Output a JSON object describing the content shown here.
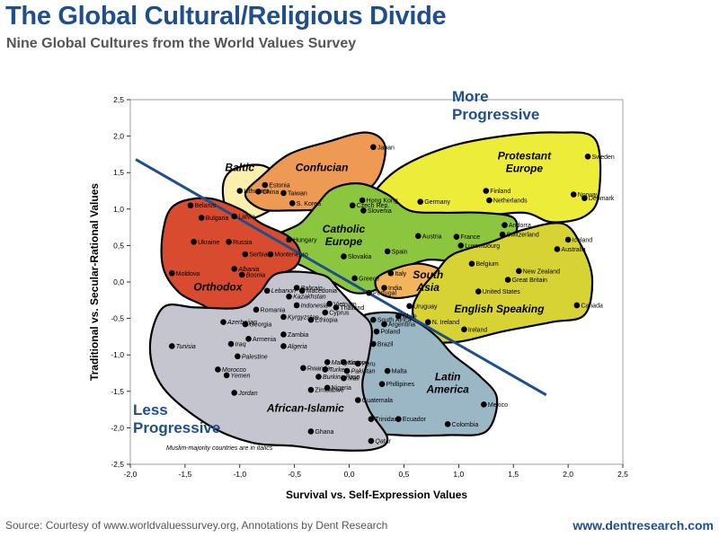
{
  "title": "The Global Cultural/Religious Divide",
  "subtitle": "Nine Global Cultures from the World Values Survey",
  "source": "Source: Courtesy of www.worldvaluessurvey.org, Annotations by Dent Research",
  "website": "www.dentresearch.com",
  "chart_data": {
    "type": "scatter",
    "xlabel": "Survival vs. Self-Expression Values",
    "ylabel": "Traditional vs. Secular-Rational Values",
    "xlim": [
      -2.0,
      2.5
    ],
    "ylim": [
      -2.5,
      2.5
    ],
    "x_ticks": [
      "-2,0",
      "-1,5",
      "-1,0",
      "-0,5",
      "0,0",
      "0,5",
      "1,0",
      "1,5",
      "2,0",
      "2,5"
    ],
    "y_ticks": [
      "2,5",
      "2,0",
      "1,5",
      "1,0",
      "0,5",
      "0,0",
      "-0,5",
      "-1,0",
      "-1,5",
      "-2,0",
      "-2,5"
    ],
    "annotations": {
      "more_progressive": [
        "More",
        "Progressive"
      ],
      "less_progressive": [
        "Less",
        "Progressive"
      ],
      "note": "Muslim-majority countries are in italics"
    },
    "divide_line": {
      "from": [
        -1.95,
        1.68
      ],
      "to": [
        1.8,
        -1.55
      ]
    },
    "regions": [
      {
        "name": "Baltic",
        "color": "#fbefae",
        "label_pos": [
          -1.0,
          1.52
        ]
      },
      {
        "name": "Confucian",
        "color": "#ee9a55",
        "label_pos": [
          -0.25,
          1.52
        ]
      },
      {
        "name": "Protestant Europe",
        "color": "#ecec39",
        "label_pos": [
          1.6,
          1.68
        ]
      },
      {
        "name": "Catholic Europe",
        "color": "#8cc63f",
        "label_pos": [
          -0.05,
          0.68
        ]
      },
      {
        "name": "Orthodox",
        "color": "#d94b2e",
        "label_pos": [
          -1.2,
          -0.12
        ]
      },
      {
        "name": "South Asia",
        "color": "#f4b45a",
        "label_pos": [
          0.72,
          0.05
        ]
      },
      {
        "name": "English Speaking",
        "color": "#d8d334",
        "label_pos": [
          1.37,
          -0.42
        ]
      },
      {
        "name": "Latin America",
        "color": "#9bb7c5",
        "label_pos": [
          0.9,
          -1.35
        ]
      },
      {
        "name": "African-Islamic",
        "color": "#c5c5cf",
        "label_pos": [
          -0.4,
          -1.78
        ]
      }
    ],
    "points": [
      {
        "label": "Japan",
        "x": 0.22,
        "y": 1.85
      },
      {
        "label": "Sweden",
        "x": 2.18,
        "y": 1.72
      },
      {
        "label": "Estonia",
        "x": -0.77,
        "y": 1.33
      },
      {
        "label": "Lithuania",
        "x": -1.0,
        "y": 1.25
      },
      {
        "label": "China",
        "x": -0.83,
        "y": 1.24
      },
      {
        "label": "Taiwan",
        "x": -0.6,
        "y": 1.22
      },
      {
        "label": "S. Korea",
        "x": -0.52,
        "y": 1.08
      },
      {
        "label": "Hong Kong",
        "x": 0.12,
        "y": 1.12
      },
      {
        "label": "Czech Rep.",
        "x": 0.03,
        "y": 1.05
      },
      {
        "label": "Slovenia",
        "x": 0.13,
        "y": 0.98
      },
      {
        "label": "Germany",
        "x": 0.65,
        "y": 1.1
      },
      {
        "label": "Finland",
        "x": 1.25,
        "y": 1.25
      },
      {
        "label": "Netherlands",
        "x": 1.28,
        "y": 1.12
      },
      {
        "label": "Norway",
        "x": 2.05,
        "y": 1.2
      },
      {
        "label": "Denmark",
        "x": 2.15,
        "y": 1.15
      },
      {
        "label": "Belarus",
        "x": -1.45,
        "y": 1.05
      },
      {
        "label": "Bulgaria",
        "x": -1.35,
        "y": 0.88
      },
      {
        "label": "Latvia",
        "x": -1.05,
        "y": 0.9
      },
      {
        "label": "Ukraine",
        "x": -1.42,
        "y": 0.55
      },
      {
        "label": "Russia",
        "x": -1.1,
        "y": 0.55
      },
      {
        "label": "Hungary",
        "x": -0.55,
        "y": 0.58
      },
      {
        "label": "Austria",
        "x": 0.63,
        "y": 0.63
      },
      {
        "label": "France",
        "x": 0.98,
        "y": 0.62
      },
      {
        "label": "Andorra",
        "x": 1.42,
        "y": 0.78
      },
      {
        "label": "Switzerland",
        "x": 1.4,
        "y": 0.65
      },
      {
        "label": "Iceland",
        "x": 2.0,
        "y": 0.58
      },
      {
        "label": "Luxembourg",
        "x": 1.02,
        "y": 0.5
      },
      {
        "label": "Spain",
        "x": 0.35,
        "y": 0.42
      },
      {
        "label": "Australia",
        "x": 1.9,
        "y": 0.45
      },
      {
        "label": "Slovakia",
        "x": -0.05,
        "y": 0.35
      },
      {
        "label": "Serbia",
        "x": -0.95,
        "y": 0.38
      },
      {
        "label": "Montenegro",
        "x": -0.72,
        "y": 0.38
      },
      {
        "label": "Belgium",
        "x": 1.12,
        "y": 0.25
      },
      {
        "label": "Albania",
        "x": -1.05,
        "y": 0.18
      },
      {
        "label": "Moldova",
        "x": -1.62,
        "y": 0.12
      },
      {
        "label": "Bosnia",
        "x": -0.98,
        "y": 0.1
      },
      {
        "label": "Italy",
        "x": 0.38,
        "y": 0.12
      },
      {
        "label": "Greece",
        "x": 0.05,
        "y": 0.05
      },
      {
        "label": "New Zealand",
        "x": 1.55,
        "y": 0.15
      },
      {
        "label": "Great Britain",
        "x": 1.45,
        "y": 0.03
      },
      {
        "label": "United States",
        "x": 1.18,
        "y": -0.13
      },
      {
        "label": "Canada",
        "x": 2.08,
        "y": -0.32
      },
      {
        "label": "India",
        "x": 0.32,
        "y": -0.08
      },
      {
        "label": "Portugal",
        "x": 0.18,
        "y": -0.15
      },
      {
        "label": "Lebanon",
        "x": -0.75,
        "y": -0.12
      },
      {
        "label": "Macedonia",
        "x": -0.43,
        "y": -0.12
      },
      {
        "label": "Bahrain",
        "x": -0.48,
        "y": -0.08
      },
      {
        "label": "Kazakhstan",
        "x": -0.55,
        "y": -0.2
      },
      {
        "label": "Indonesia",
        "x": -0.48,
        "y": -0.32
      },
      {
        "label": "Vietnam",
        "x": -0.18,
        "y": -0.3
      },
      {
        "label": "Thailand",
        "x": -0.12,
        "y": -0.35
      },
      {
        "label": "Cyprus",
        "x": -0.22,
        "y": -0.42
      },
      {
        "label": "Romania",
        "x": -0.85,
        "y": -0.38
      },
      {
        "label": "Uruguay",
        "x": 0.55,
        "y": -0.33
      },
      {
        "label": "Chile",
        "x": 0.45,
        "y": -0.47
      },
      {
        "label": "South Africa",
        "x": 0.22,
        "y": -0.52
      },
      {
        "label": "N. Ireland",
        "x": 0.72,
        "y": -0.55
      },
      {
        "label": "Ireland",
        "x": 1.05,
        "y": -0.65
      },
      {
        "label": "Argentina",
        "x": 0.32,
        "y": -0.58
      },
      {
        "label": "Poland",
        "x": 0.25,
        "y": -0.68
      },
      {
        "label": "Kyrgyzstan",
        "x": -0.6,
        "y": -0.48
      },
      {
        "label": "Ethiopia",
        "x": -0.35,
        "y": -0.52
      },
      {
        "label": "Azerbaijan",
        "x": -1.15,
        "y": -0.55
      },
      {
        "label": "Georgia",
        "x": -0.95,
        "y": -0.58
      },
      {
        "label": "Zambia",
        "x": -0.6,
        "y": -0.72
      },
      {
        "label": "Armenia",
        "x": -0.92,
        "y": -0.78
      },
      {
        "label": "Tunisia",
        "x": -1.62,
        "y": -0.88
      },
      {
        "label": "Iraq",
        "x": -1.08,
        "y": -0.85
      },
      {
        "label": "Algeria",
        "x": -0.6,
        "y": -0.88
      },
      {
        "label": "Brazil",
        "x": 0.22,
        "y": -0.85
      },
      {
        "label": "Palestine",
        "x": -1.02,
        "y": -1.02
      },
      {
        "label": "Malaysia",
        "x": -0.2,
        "y": -1.1
      },
      {
        "label": "Kosovo",
        "x": -0.05,
        "y": -1.1
      },
      {
        "label": "Peru",
        "x": 0.08,
        "y": -1.12
      },
      {
        "label": "Rwanda",
        "x": -0.42,
        "y": -1.18
      },
      {
        "label": "Turkey",
        "x": -0.22,
        "y": -1.2
      },
      {
        "label": "Pakistan",
        "x": -0.02,
        "y": -1.22
      },
      {
        "label": "Morocco",
        "x": -1.2,
        "y": -1.2
      },
      {
        "label": "Yemen",
        "x": -1.12,
        "y": -1.28
      },
      {
        "label": "Burkina Faso",
        "x": -0.28,
        "y": -1.3
      },
      {
        "label": "Mali",
        "x": -0.05,
        "y": -1.32
      },
      {
        "label": "Malta",
        "x": 0.35,
        "y": -1.22
      },
      {
        "label": "Phillipines",
        "x": 0.3,
        "y": -1.4
      },
      {
        "label": "Nigeria",
        "x": -0.2,
        "y": -1.45
      },
      {
        "label": "Zimbabwe",
        "x": -0.35,
        "y": -1.48
      },
      {
        "label": "Jordan",
        "x": -1.05,
        "y": -1.52
      },
      {
        "label": "Guatemala",
        "x": 0.08,
        "y": -1.62
      },
      {
        "label": "Mexico",
        "x": 1.23,
        "y": -1.68
      },
      {
        "label": "Ecuador",
        "x": 0.45,
        "y": -1.88
      },
      {
        "label": "Colombia",
        "x": 0.9,
        "y": -1.95
      },
      {
        "label": "Trinidad",
        "x": 0.2,
        "y": -1.88
      },
      {
        "label": "Ghana",
        "x": -0.35,
        "y": -2.05
      },
      {
        "label": "Qatar",
        "x": 0.2,
        "y": -2.18
      }
    ]
  }
}
